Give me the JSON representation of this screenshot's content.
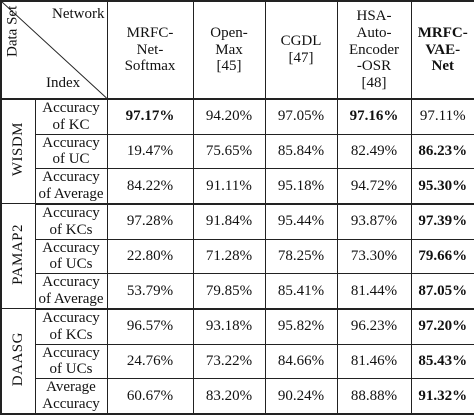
{
  "header": {
    "corner_top": "Network",
    "corner_bottom": "Index",
    "corner_side": "Data Set",
    "columns": [
      {
        "lines": [
          "MRFC-",
          "Net-",
          "Softmax"
        ],
        "bold": false
      },
      {
        "lines": [
          "Open-",
          "Max",
          "[45]"
        ],
        "bold": false
      },
      {
        "lines": [
          "CGDL",
          "[47]"
        ],
        "bold": false
      },
      {
        "lines": [
          "HSA-",
          "Auto-",
          "Encoder",
          "-OSR",
          "[48]"
        ],
        "bold": false
      },
      {
        "lines": [
          "MRFC-",
          "VAE-",
          "Net"
        ],
        "bold": true
      }
    ]
  },
  "groups": [
    {
      "dataset": "WISDM",
      "rows": [
        {
          "metric": [
            "Accuracy",
            "of KC"
          ],
          "values": [
            "97.17%",
            "94.20%",
            "97.05%",
            "97.16%",
            "97.11%"
          ],
          "bold": [
            true,
            false,
            false,
            true,
            false
          ]
        },
        {
          "metric": [
            "Accuracy",
            "of UC"
          ],
          "values": [
            "19.47%",
            "75.65%",
            "85.84%",
            "82.49%",
            "86.23%"
          ],
          "bold": [
            false,
            false,
            false,
            false,
            true
          ]
        },
        {
          "metric": [
            "Accuracy",
            "of Average"
          ],
          "values": [
            "84.22%",
            "91.11%",
            "95.18%",
            "94.72%",
            "95.30%"
          ],
          "bold": [
            false,
            false,
            false,
            false,
            true
          ]
        }
      ]
    },
    {
      "dataset": "PAMAP2",
      "rows": [
        {
          "metric": [
            "Accuracy",
            "of KCs"
          ],
          "values": [
            "97.28%",
            "91.84%",
            "95.44%",
            "93.87%",
            "97.39%"
          ],
          "bold": [
            false,
            false,
            false,
            false,
            true
          ]
        },
        {
          "metric": [
            "Accuracy",
            "of UCs"
          ],
          "values": [
            "22.80%",
            "71.28%",
            "78.25%",
            "73.30%",
            "79.66%"
          ],
          "bold": [
            false,
            false,
            false,
            false,
            true
          ]
        },
        {
          "metric": [
            "Accuracy",
            "of Average"
          ],
          "values": [
            "53.79%",
            "79.85%",
            "85.41%",
            "81.44%",
            "87.05%"
          ],
          "bold": [
            false,
            false,
            false,
            false,
            true
          ]
        }
      ]
    },
    {
      "dataset": "DAASG",
      "rows": [
        {
          "metric": [
            "Accuracy",
            "of KCs"
          ],
          "values": [
            "96.57%",
            "93.18%",
            "95.82%",
            "96.23%",
            "97.20%"
          ],
          "bold": [
            false,
            false,
            false,
            false,
            true
          ]
        },
        {
          "metric": [
            "Accuracy",
            "of UCs"
          ],
          "values": [
            "24.76%",
            "73.22%",
            "84.66%",
            "81.46%",
            "85.43%"
          ],
          "bold": [
            false,
            false,
            false,
            false,
            true
          ]
        },
        {
          "metric": [
            "Average",
            "Accuracy"
          ],
          "values": [
            "60.67%",
            "83.20%",
            "90.24%",
            "88.88%",
            "91.32%"
          ],
          "bold": [
            false,
            false,
            false,
            false,
            true
          ]
        }
      ]
    }
  ]
}
